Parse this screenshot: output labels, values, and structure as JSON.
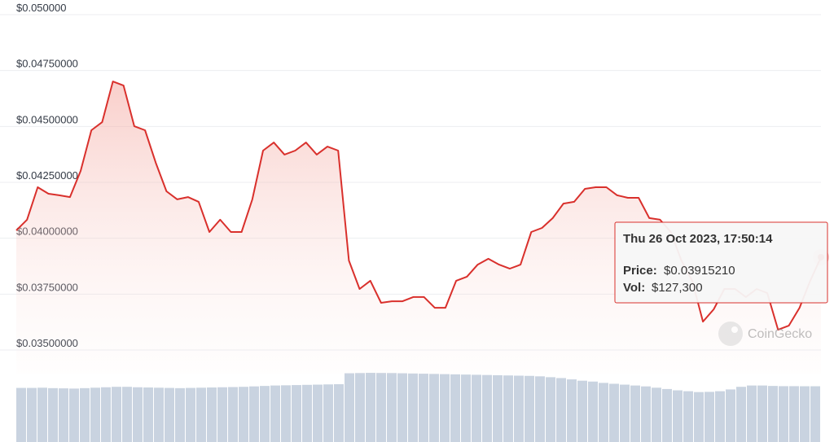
{
  "chart_data": {
    "type": "line",
    "ylim": [
      0.035,
      0.05
    ],
    "yticks": [
      {
        "value": 0.05,
        "label": "$0.050000"
      },
      {
        "value": 0.0475,
        "label": "$0.04750000"
      },
      {
        "value": 0.045,
        "label": "$0.04500000"
      },
      {
        "value": 0.0425,
        "label": "$0.04250000"
      },
      {
        "value": 0.04,
        "label": "$0.04000000"
      },
      {
        "value": 0.0375,
        "label": "$0.03750000"
      },
      {
        "value": 0.035,
        "label": "$0.03500000"
      }
    ],
    "grid": true,
    "color": "#d9302c",
    "values": [
      0.04035,
      0.04083,
      0.04228,
      0.04199,
      0.04192,
      0.04184,
      0.04301,
      0.04483,
      0.04519,
      0.04701,
      0.04683,
      0.04501,
      0.04483,
      0.04337,
      0.0421,
      0.04174,
      0.04184,
      0.04163,
      0.04028,
      0.04083,
      0.04028,
      0.04028,
      0.04174,
      0.04392,
      0.04428,
      0.04374,
      0.04392,
      0.04428,
      0.04374,
      0.0441,
      0.04392,
      0.039,
      0.03773,
      0.0381,
      0.03711,
      0.03718,
      0.03718,
      0.03737,
      0.03737,
      0.03689,
      0.03689,
      0.0381,
      0.03828,
      0.03882,
      0.03908,
      0.03882,
      0.03864,
      0.03882,
      0.04028,
      0.04046,
      0.0409,
      0.04155,
      0.04163,
      0.04221,
      0.04228,
      0.04228,
      0.04192,
      0.04181,
      0.04181,
      0.0409,
      0.04083,
      0.04028,
      0.039,
      0.0381,
      0.03627,
      0.03682,
      0.03773,
      0.03773,
      0.03737,
      0.03773,
      0.03755,
      0.03591,
      0.03609,
      0.03689,
      0.0381,
      0.0391521
    ],
    "volume_color": "#c9d3e0",
    "volumes": [
      123500,
      123500,
      124000,
      123000,
      122500,
      122000,
      123000,
      124000,
      125000,
      126000,
      126000,
      125000,
      124500,
      124000,
      123500,
      123000,
      123500,
      124000,
      124500,
      125000,
      125500,
      126000,
      127000,
      128000,
      129000,
      129500,
      130000,
      130500,
      131000,
      131500,
      132000,
      157000,
      157500,
      158000,
      157700,
      157500,
      157000,
      156500,
      156000,
      155500,
      155000,
      154500,
      154000,
      153500,
      153000,
      152500,
      152000,
      151500,
      151000,
      150000,
      148000,
      146000,
      143000,
      140000,
      138000,
      135000,
      133000,
      131000,
      129000,
      127000,
      124000,
      121000,
      118000,
      116000,
      114000,
      114500,
      116000,
      120000,
      126000,
      129000,
      129000,
      128000,
      127500,
      127500,
      127300,
      127300
    ],
    "tooltip": {
      "date": "Thu 26 Oct 2023, 17:50:14",
      "price_label": "Price:",
      "price": "$0.03915210",
      "vol_label": "Vol:",
      "vol": "$127,300"
    },
    "watermark": "CoinGecko"
  }
}
